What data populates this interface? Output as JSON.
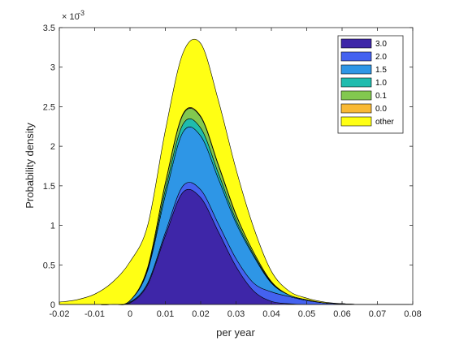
{
  "chart_data": {
    "type": "area",
    "xlabel": "per year",
    "ylabel": "Probability density",
    "xlim": [
      -0.02,
      0.08
    ],
    "ylim": [
      0,
      0.0035
    ],
    "x_ticks": [
      "-0.02",
      "-0.01",
      "0",
      "0.01",
      "0.02",
      "0.03",
      "0.04",
      "0.05",
      "0.06",
      "0.07",
      "0.08"
    ],
    "x_tick_values": [
      -0.02,
      -0.01,
      0,
      0.01,
      0.02,
      0.03,
      0.04,
      0.05,
      0.06,
      0.07,
      0.08
    ],
    "y_ticks": [
      "0",
      "0.5",
      "1",
      "1.5",
      "2",
      "2.5",
      "3",
      "3.5"
    ],
    "y_tick_values": [
      0,
      0.0005,
      0.001,
      0.0015,
      0.002,
      0.0025,
      0.003,
      0.0035
    ],
    "y_exponent_base": "× 10",
    "y_exponent_power": "-3",
    "legend_position": "top-right",
    "grid": false,
    "x": [
      -0.02,
      -0.015,
      -0.01,
      -0.005,
      0,
      0.005,
      0.01,
      0.015,
      0.02,
      0.025,
      0.03,
      0.035,
      0.04,
      0.045,
      0.05,
      0.055,
      0.06,
      0.065,
      0.07,
      0.075,
      0.08
    ],
    "series": [
      {
        "name": "3.0",
        "color": "#3e26a8",
        "values": [
          0,
          0,
          0,
          0,
          2e-05,
          0.00025,
          0.00087,
          0.00142,
          0.00135,
          0.00092,
          0.00048,
          0.00017,
          4e-05,
          1e-05,
          0,
          0,
          0,
          0,
          0,
          0,
          0
        ]
      },
      {
        "name": "2.0",
        "color": "#4462f0",
        "values": [
          0,
          0,
          0,
          0,
          1e-05,
          2e-05,
          4e-05,
          8e-05,
          0.0001,
          0.0001,
          0.0001,
          0.0001,
          0.00012,
          9e-05,
          5e-05,
          2e-05,
          1e-05,
          0,
          0,
          0,
          0
        ]
      },
      {
        "name": "1.5",
        "color": "#2e96e6",
        "values": [
          0,
          0,
          0,
          0,
          2e-05,
          0.00016,
          0.00047,
          0.00068,
          0.00068,
          0.00057,
          0.00045,
          0.00034,
          0.00011,
          2e-05,
          1e-05,
          0,
          0,
          0,
          0,
          0,
          0
        ]
      },
      {
        "name": "1.0",
        "color": "#1fbcae",
        "values": [
          0,
          0,
          0,
          0,
          0,
          2e-05,
          7e-05,
          0.0001,
          0.0001,
          7e-05,
          4e-05,
          2e-05,
          1e-05,
          0,
          0,
          0,
          0,
          0,
          0,
          0,
          0
        ]
      },
      {
        "name": "0.1",
        "color": "#82c84f",
        "values": [
          0,
          0,
          0,
          0,
          0,
          2e-05,
          8e-05,
          0.00012,
          0.00014,
          0.0001,
          6e-05,
          3e-05,
          1e-05,
          0,
          0,
          0,
          0,
          0,
          0,
          0,
          0
        ]
      },
      {
        "name": "0.0",
        "color": "#f9b935",
        "values": [
          0,
          0,
          0,
          0,
          0,
          0,
          1e-05,
          1e-05,
          1e-05,
          1e-05,
          1e-05,
          0,
          0,
          0,
          0,
          0,
          0,
          0,
          0,
          0,
          0
        ]
      },
      {
        "name": "other",
        "color": "#ffff14",
        "values": [
          3e-05,
          6e-05,
          0.00013,
          0.00028,
          0.00049,
          0.00053,
          0.00066,
          0.00077,
          0.00092,
          0.00081,
          0.00057,
          0.00031,
          0.00013,
          5e-05,
          2e-05,
          1e-05,
          0,
          0,
          0,
          0,
          0
        ]
      }
    ]
  }
}
